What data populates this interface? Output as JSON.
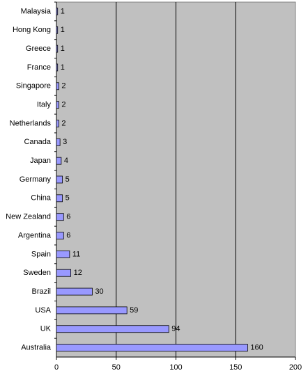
{
  "chart_data": {
    "type": "bar",
    "orientation": "horizontal",
    "categories": [
      "Malaysia",
      "Hong Kong",
      "Greece",
      "France",
      "Singapore",
      "Italy",
      "Netherlands",
      "Canada",
      "Japan",
      "Germany",
      "China",
      "New Zealand",
      "Argentina",
      "Spain",
      "Sweden",
      "Brazil",
      "USA",
      "UK",
      "Australia"
    ],
    "values": [
      1,
      1,
      1,
      1,
      2,
      2,
      2,
      3,
      4,
      5,
      5,
      6,
      6,
      11,
      12,
      30,
      59,
      94,
      160
    ],
    "color": "#9999ff",
    "plot_background": "#c0c0c0",
    "xlim": [
      0,
      200
    ],
    "xticks": [
      0,
      50,
      100,
      150,
      200
    ],
    "grid": true
  }
}
